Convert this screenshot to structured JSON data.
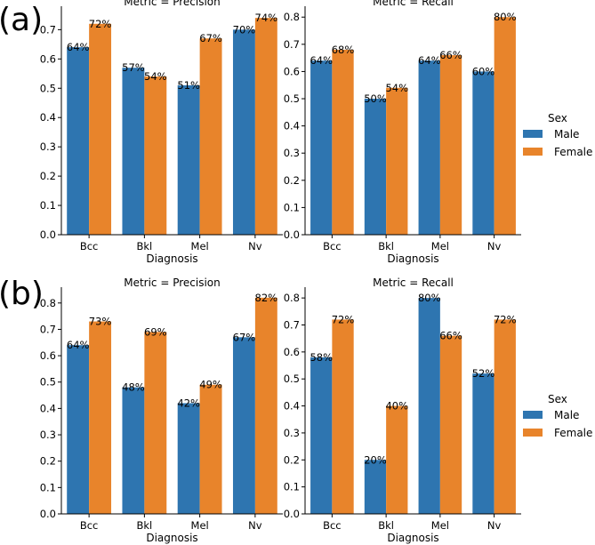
{
  "panel_labels": [
    "(a)",
    "(b)"
  ],
  "legend": {
    "title": "Sex",
    "entries": [
      {
        "name": "Male",
        "color": "#2e75b0"
      },
      {
        "name": "Female",
        "color": "#e8842b"
      }
    ]
  },
  "chart_data": [
    {
      "type": "bar",
      "panel": "(a)",
      "title": "Metric = Precision",
      "xlabel": "Diagnosis",
      "ylabel": "",
      "categories": [
        "Bcc",
        "Bkl",
        "Mel",
        "Nv"
      ],
      "ylim": [
        0,
        0.78
      ],
      "yticks": [
        0.0,
        0.1,
        0.2,
        0.3,
        0.4,
        0.5,
        0.6,
        0.7
      ],
      "ytick_labels": [
        "0.0",
        "0.1",
        "0.2",
        "0.3",
        "0.4",
        "0.5",
        "0.6",
        "0.7"
      ],
      "series": [
        {
          "name": "Male",
          "values": [
            0.64,
            0.57,
            0.51,
            0.7
          ],
          "labels": [
            "64%",
            "57%",
            "51%",
            "70%"
          ]
        },
        {
          "name": "Female",
          "values": [
            0.72,
            0.54,
            0.67,
            0.74
          ],
          "labels": [
            "72%",
            "54%",
            "67%",
            "74%"
          ]
        }
      ]
    },
    {
      "type": "bar",
      "panel": "(a)",
      "title": "Metric = Recall",
      "xlabel": "Diagnosis",
      "ylabel": "",
      "categories": [
        "Bcc",
        "Bkl",
        "Mel",
        "Nv"
      ],
      "ylim": [
        0,
        0.84
      ],
      "yticks": [
        0.0,
        0.1,
        0.2,
        0.3,
        0.4,
        0.5,
        0.6,
        0.7,
        0.8
      ],
      "ytick_labels": [
        "0.0",
        "0.1",
        "0.2",
        "0.3",
        "0.4",
        "0.5",
        "0.6",
        "0.7",
        "0.8"
      ],
      "series": [
        {
          "name": "Male",
          "values": [
            0.64,
            0.5,
            0.64,
            0.6
          ],
          "labels": [
            "64%",
            "50%",
            "64%",
            "60%"
          ]
        },
        {
          "name": "Female",
          "values": [
            0.68,
            0.54,
            0.66,
            0.8
          ],
          "labels": [
            "68%",
            "54%",
            "66%",
            "80%"
          ]
        }
      ]
    },
    {
      "type": "bar",
      "panel": "(b)",
      "title": "Metric = Precision",
      "xlabel": "Diagnosis",
      "ylabel": "",
      "categories": [
        "Bcc",
        "Bkl",
        "Mel",
        "Nv"
      ],
      "ylim": [
        0,
        0.86
      ],
      "yticks": [
        0.0,
        0.1,
        0.2,
        0.3,
        0.4,
        0.5,
        0.6,
        0.7,
        0.8
      ],
      "ytick_labels": [
        "0.0",
        "0.1",
        "0.2",
        "0.3",
        "0.4",
        "0.5",
        "0.6",
        "0.7",
        "0.8"
      ],
      "series": [
        {
          "name": "Male",
          "values": [
            0.64,
            0.48,
            0.42,
            0.67
          ],
          "labels": [
            "64%",
            "48%",
            "42%",
            "67%"
          ]
        },
        {
          "name": "Female",
          "values": [
            0.73,
            0.69,
            0.49,
            0.82
          ],
          "labels": [
            "73%",
            "69%",
            "49%",
            "82%"
          ]
        }
      ]
    },
    {
      "type": "bar",
      "panel": "(b)",
      "title": "Metric = Recall",
      "xlabel": "Diagnosis",
      "ylabel": "",
      "categories": [
        "Bcc",
        "Bkl",
        "Mel",
        "Nv"
      ],
      "ylim": [
        0,
        0.84
      ],
      "yticks": [
        0.0,
        0.1,
        0.2,
        0.3,
        0.4,
        0.5,
        0.6,
        0.7,
        0.8
      ],
      "ytick_labels": [
        "0.0",
        "0.1",
        "0.2",
        "0.3",
        "0.4",
        "0.5",
        "0.6",
        "0.7",
        "0.8"
      ],
      "series": [
        {
          "name": "Male",
          "values": [
            0.58,
            0.2,
            0.8,
            0.52
          ],
          "labels": [
            "58%",
            "20%",
            "80%",
            "52%"
          ]
        },
        {
          "name": "Female",
          "values": [
            0.72,
            0.4,
            0.66,
            0.72
          ],
          "labels": [
            "72%",
            "40%",
            "66%",
            "72%"
          ]
        }
      ]
    }
  ]
}
